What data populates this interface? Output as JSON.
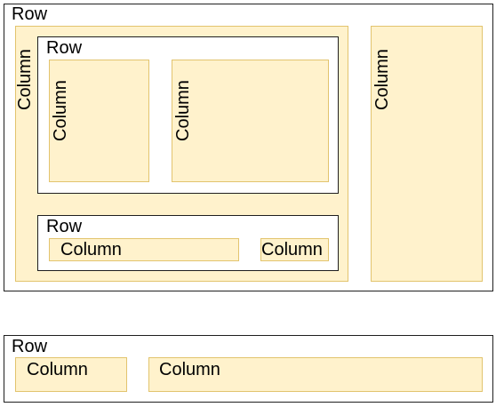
{
  "diagram": {
    "outer_row": {
      "label": "Row",
      "left_column": {
        "label": "Column",
        "top_row": {
          "label": "Row",
          "column_a": {
            "label": "Column"
          },
          "column_b": {
            "label": "Column"
          }
        },
        "bottom_row": {
          "label": "Row",
          "column_a": {
            "label": "Column"
          },
          "column_b": {
            "label": "Column"
          }
        }
      },
      "right_column": {
        "label": "Column"
      }
    },
    "lower_row": {
      "label": "Row",
      "column_a": {
        "label": "Column"
      },
      "column_b": {
        "label": "Column"
      }
    }
  },
  "colors": {
    "row_border": "#1f1f1f",
    "column_fill": "#fff2cc",
    "column_border": "#e2c46e"
  }
}
